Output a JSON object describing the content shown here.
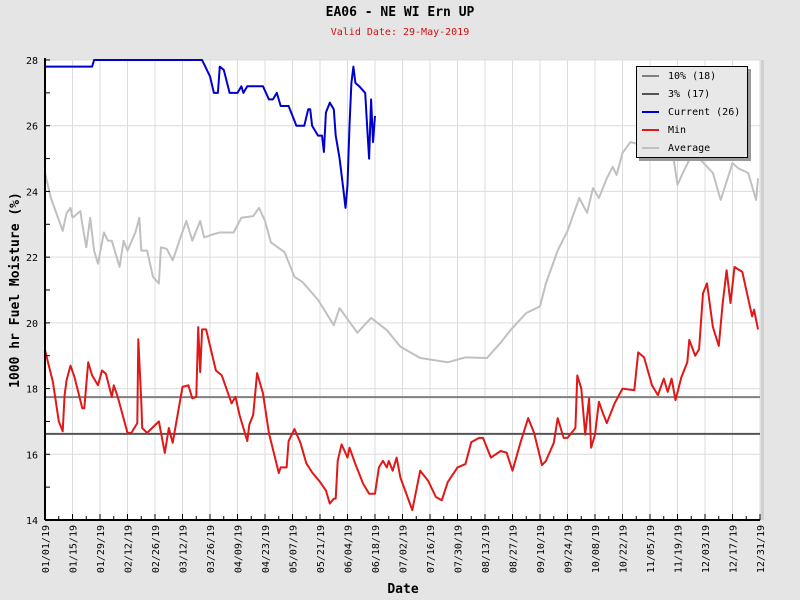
{
  "chart_data": {
    "type": "line",
    "title": "EA06 - NE WI Ern UP",
    "subtitle": "Valid Date: 29-May-2019",
    "xlabel": "Date",
    "ylabel": "1000 hr Fuel Moisture (%)",
    "ylim": [
      14,
      28
    ],
    "xlim_days": [
      0,
      364
    ],
    "y_ticks": [
      "14",
      "16",
      "18",
      "20",
      "22",
      "24",
      "26",
      "28"
    ],
    "x_ticks": [
      "01/01/19",
      "01/15/19",
      "01/29/19",
      "02/12/19",
      "02/26/19",
      "03/12/19",
      "03/26/19",
      "04/09/19",
      "04/23/19",
      "05/07/19",
      "05/21/19",
      "06/04/19",
      "06/18/19",
      "07/02/19",
      "07/16/19",
      "07/30/19",
      "08/13/19",
      "08/27/19",
      "09/10/19",
      "09/24/19",
      "10/08/19",
      "10/22/19",
      "11/05/19",
      "11/19/19",
      "12/03/19",
      "12/17/19",
      "12/31/19"
    ],
    "grid": true,
    "legend_position": "top-right",
    "thresholds": [
      {
        "name": "10% (18)",
        "value": 17.74,
        "color": "#808080"
      },
      {
        "name": "3% (17)",
        "value": 16.62,
        "color": "#555555"
      }
    ],
    "series": [
      {
        "name": "Current (26)",
        "color": "#0000cc",
        "points": [
          [
            0,
            27.8
          ],
          [
            24,
            27.8
          ],
          [
            25,
            28
          ],
          [
            80,
            28
          ],
          [
            84,
            27.5
          ],
          [
            86,
            27.0
          ],
          [
            88,
            27.0
          ],
          [
            89,
            27.8
          ],
          [
            91,
            27.7
          ],
          [
            94,
            27.0
          ],
          [
            98,
            27.0
          ],
          [
            100,
            27.2
          ],
          [
            101,
            27.0
          ],
          [
            103,
            27.2
          ],
          [
            111,
            27.2
          ],
          [
            114,
            26.8
          ],
          [
            116,
            26.8
          ],
          [
            118,
            27.0
          ],
          [
            120,
            26.6
          ],
          [
            124,
            26.6
          ],
          [
            126,
            26.3
          ],
          [
            128,
            26.0
          ],
          [
            132,
            26.0
          ],
          [
            134,
            26.5
          ],
          [
            135,
            26.5
          ],
          [
            136,
            26.0
          ],
          [
            139,
            25.7
          ],
          [
            141,
            25.7
          ],
          [
            142,
            25.2
          ],
          [
            143,
            26.4
          ],
          [
            145,
            26.7
          ],
          [
            147,
            26.5
          ],
          [
            148,
            25.7
          ],
          [
            150,
            25.0
          ],
          [
            152,
            24.0
          ],
          [
            153,
            23.5
          ],
          [
            154,
            24.2
          ],
          [
            155,
            26.0
          ],
          [
            156,
            27.3
          ],
          [
            157,
            27.8
          ],
          [
            158,
            27.3
          ],
          [
            160,
            27.2
          ],
          [
            163,
            27.0
          ],
          [
            164,
            26.0
          ],
          [
            165,
            25.0
          ],
          [
            166,
            26.8
          ],
          [
            167,
            25.5
          ],
          [
            168,
            26.3
          ]
        ]
      },
      {
        "name": "Min",
        "color": "#e01818",
        "points": [
          [
            0,
            19.17
          ],
          [
            4,
            18.2
          ],
          [
            7,
            17.0
          ],
          [
            9,
            16.7
          ],
          [
            10,
            17.8
          ],
          [
            11,
            18.26
          ],
          [
            13,
            18.7
          ],
          [
            15,
            18.35
          ],
          [
            19,
            17.4
          ],
          [
            20,
            17.4
          ],
          [
            22,
            18.8
          ],
          [
            24,
            18.4
          ],
          [
            27,
            18.1
          ],
          [
            29,
            18.55
          ],
          [
            31,
            18.45
          ],
          [
            34,
            17.75
          ],
          [
            35,
            18.1
          ],
          [
            37,
            17.75
          ],
          [
            42,
            16.65
          ],
          [
            44,
            16.65
          ],
          [
            47,
            16.95
          ],
          [
            47.5,
            19.5
          ],
          [
            49,
            17.6
          ],
          [
            49.5,
            16.8
          ],
          [
            52,
            16.65
          ],
          [
            58,
            17.0
          ],
          [
            61,
            16.04
          ],
          [
            63,
            16.8
          ],
          [
            65,
            16.35
          ],
          [
            70,
            18.05
          ],
          [
            73,
            18.1
          ],
          [
            75,
            17.7
          ],
          [
            77,
            17.75
          ],
          [
            78,
            19.87
          ],
          [
            79,
            18.5
          ],
          [
            80,
            19.8
          ],
          [
            82,
            19.8
          ],
          [
            87,
            18.55
          ],
          [
            90,
            18.4
          ],
          [
            95,
            17.55
          ],
          [
            97,
            17.75
          ],
          [
            99,
            17.2
          ],
          [
            103,
            16.4
          ],
          [
            104,
            16.9
          ],
          [
            106,
            17.2
          ],
          [
            108,
            18.47
          ],
          [
            111,
            17.85
          ],
          [
            114,
            16.65
          ],
          [
            119,
            15.43
          ],
          [
            120,
            15.6
          ],
          [
            123,
            15.6
          ],
          [
            124,
            16.4
          ],
          [
            127,
            16.77
          ],
          [
            130,
            16.35
          ],
          [
            133,
            15.73
          ],
          [
            136,
            15.45
          ],
          [
            140,
            15.16
          ],
          [
            143,
            14.9
          ],
          [
            145,
            14.5
          ],
          [
            147,
            14.65
          ],
          [
            148,
            14.65
          ],
          [
            149,
            15.8
          ],
          [
            151,
            16.3
          ],
          [
            154,
            15.9
          ],
          [
            155,
            16.2
          ],
          [
            158,
            15.7
          ],
          [
            162,
            15.1
          ],
          [
            165,
            14.8
          ],
          [
            168,
            14.8
          ],
          [
            170,
            15.6
          ],
          [
            172,
            15.8
          ],
          [
            174,
            15.6
          ],
          [
            175,
            15.8
          ],
          [
            177,
            15.5
          ],
          [
            179,
            15.9
          ],
          [
            181,
            15.28
          ],
          [
            187,
            14.3
          ],
          [
            191,
            15.5
          ],
          [
            195,
            15.2
          ],
          [
            199,
            14.7
          ],
          [
            202,
            14.6
          ],
          [
            205,
            15.15
          ],
          [
            210,
            15.6
          ],
          [
            214,
            15.7
          ],
          [
            217,
            16.37
          ],
          [
            221,
            16.5
          ],
          [
            223,
            16.5
          ],
          [
            227,
            15.9
          ],
          [
            232,
            16.1
          ],
          [
            235,
            16.05
          ],
          [
            238,
            15.5
          ],
          [
            242,
            16.35
          ],
          [
            246,
            17.1
          ],
          [
            249,
            16.65
          ],
          [
            253,
            15.67
          ],
          [
            255,
            15.8
          ],
          [
            259,
            16.35
          ],
          [
            261,
            17.1
          ],
          [
            264,
            16.5
          ],
          [
            266,
            16.5
          ],
          [
            270,
            16.8
          ],
          [
            271,
            18.4
          ],
          [
            273,
            18.0
          ],
          [
            275,
            16.6
          ],
          [
            277,
            17.7
          ],
          [
            278,
            16.2
          ],
          [
            280,
            16.6
          ],
          [
            282,
            17.6
          ],
          [
            284,
            17.25
          ],
          [
            286,
            16.95
          ],
          [
            290,
            17.55
          ],
          [
            294,
            18.0
          ],
          [
            300,
            17.95
          ],
          [
            302,
            19.1
          ],
          [
            305,
            18.95
          ],
          [
            309,
            18.1
          ],
          [
            312,
            17.8
          ],
          [
            315,
            18.3
          ],
          [
            317,
            17.9
          ],
          [
            319,
            18.3
          ],
          [
            321,
            17.65
          ],
          [
            324,
            18.35
          ],
          [
            327,
            18.8
          ],
          [
            328,
            19.48
          ],
          [
            331,
            19.0
          ],
          [
            333,
            19.2
          ],
          [
            335,
            20.9
          ],
          [
            337,
            21.2
          ],
          [
            340,
            19.87
          ],
          [
            343,
            19.3
          ],
          [
            345,
            20.6
          ],
          [
            347,
            21.6
          ],
          [
            349,
            20.6
          ],
          [
            351,
            21.7
          ],
          [
            355,
            21.55
          ],
          [
            360,
            20.2
          ],
          [
            361,
            20.4
          ],
          [
            363,
            19.8
          ]
        ]
      },
      {
        "name": "Average",
        "color": "#c0c0c0",
        "points": [
          [
            0,
            24.56
          ],
          [
            3,
            23.8
          ],
          [
            6,
            23.3
          ],
          [
            9,
            22.8
          ],
          [
            11,
            23.34
          ],
          [
            13,
            23.5
          ],
          [
            14,
            23.2
          ],
          [
            18,
            23.4
          ],
          [
            19,
            23.0
          ],
          [
            21,
            22.3
          ],
          [
            23,
            23.2
          ],
          [
            25,
            22.2
          ],
          [
            27,
            21.8
          ],
          [
            30,
            22.75
          ],
          [
            32,
            22.5
          ],
          [
            34,
            22.5
          ],
          [
            38,
            21.7
          ],
          [
            40,
            22.5
          ],
          [
            42,
            22.2
          ],
          [
            46,
            22.75
          ],
          [
            48,
            23.2
          ],
          [
            49,
            22.2
          ],
          [
            52,
            22.2
          ],
          [
            55,
            21.4
          ],
          [
            58,
            21.2
          ],
          [
            59,
            22.3
          ],
          [
            62,
            22.25
          ],
          [
            65,
            21.9
          ],
          [
            69,
            22.6
          ],
          [
            72,
            23.1
          ],
          [
            75,
            22.5
          ],
          [
            79,
            23.1
          ],
          [
            81,
            22.6
          ],
          [
            86,
            22.7
          ],
          [
            89,
            22.75
          ],
          [
            96,
            22.75
          ],
          [
            100,
            23.2
          ],
          [
            106,
            23.25
          ],
          [
            109,
            23.5
          ],
          [
            112,
            23.1
          ],
          [
            115,
            22.45
          ],
          [
            122,
            22.15
          ],
          [
            127,
            21.4
          ],
          [
            131,
            21.25
          ],
          [
            139,
            20.7
          ],
          [
            147,
            19.93
          ],
          [
            150,
            20.45
          ],
          [
            159,
            19.7
          ],
          [
            166,
            20.15
          ],
          [
            174,
            19.78
          ],
          [
            181,
            19.27
          ],
          [
            191,
            18.93
          ],
          [
            205,
            18.8
          ],
          [
            214,
            18.95
          ],
          [
            225,
            18.93
          ],
          [
            232,
            19.4
          ],
          [
            237,
            19.78
          ],
          [
            245,
            20.3
          ],
          [
            252,
            20.5
          ],
          [
            255,
            21.2
          ],
          [
            261,
            22.2
          ],
          [
            266,
            22.8
          ],
          [
            272,
            23.8
          ],
          [
            276,
            23.35
          ],
          [
            279,
            24.1
          ],
          [
            282,
            23.8
          ],
          [
            286,
            24.4
          ],
          [
            289,
            24.75
          ],
          [
            291,
            24.5
          ],
          [
            294,
            25.17
          ],
          [
            298,
            25.5
          ],
          [
            305,
            25.4
          ],
          [
            310,
            25.3
          ],
          [
            316,
            25.5
          ],
          [
            320,
            25.0
          ],
          [
            322,
            24.2
          ],
          [
            325,
            24.6
          ],
          [
            330,
            25.2
          ],
          [
            340,
            24.56
          ],
          [
            344,
            23.74
          ],
          [
            350,
            24.86
          ],
          [
            353,
            24.7
          ],
          [
            358,
            24.56
          ],
          [
            362,
            23.74
          ],
          [
            363,
            24.4
          ]
        ]
      }
    ]
  },
  "legend": {
    "items": [
      {
        "label": "10% (18)",
        "color": "#808080"
      },
      {
        "label": "3% (17)",
        "color": "#555555"
      },
      {
        "label": "Current (26)",
        "color": "#0000cc"
      },
      {
        "label": "Min",
        "color": "#e01818"
      },
      {
        "label": "Average",
        "color": "#c0c0c0"
      }
    ]
  }
}
